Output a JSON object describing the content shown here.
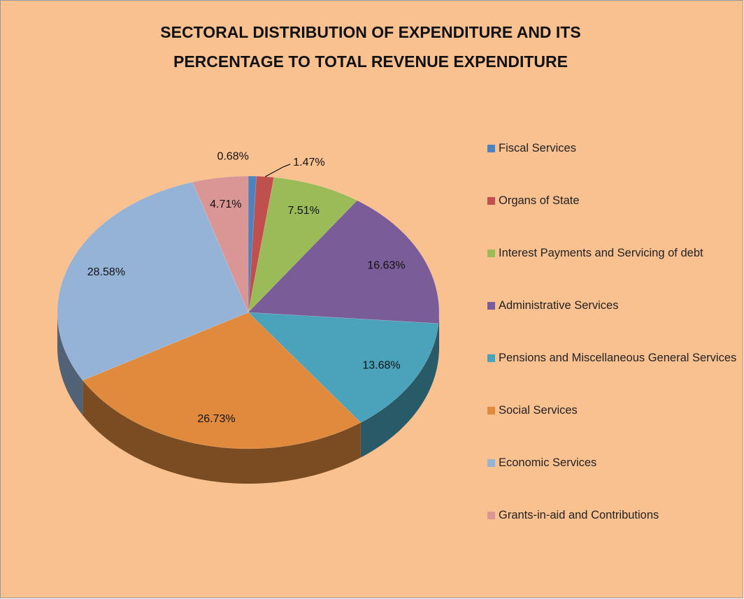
{
  "chart_data": {
    "type": "pie",
    "title": "SECTORAL DISTRIBUTION OF EXPENDITURE AND ITS PERCENTAGE TO TOTAL REVENUE EXPENDITURE",
    "categories": [
      "Fiscal Services",
      "Organs of State",
      "Interest Payments and Servicing of debt",
      "Administrative Services",
      "Pensions and Miscellaneous General Services",
      "Social Services",
      "Economic Services",
      "Grants-in-aid and Contributions"
    ],
    "values": [
      0.68,
      1.47,
      7.51,
      16.63,
      13.68,
      26.73,
      28.58,
      4.71
    ],
    "value_labels": [
      "0.68%",
      "1.47%",
      "7.51%",
      "16.63%",
      "13.68%",
      "26.73%",
      "28.58%",
      "4.71%"
    ],
    "colors": [
      "#4f81bd",
      "#c0504d",
      "#9bbb59",
      "#7a5c99",
      "#4aa3bb",
      "#e08a3e",
      "#95b3d7",
      "#d99694"
    ],
    "legend": "right"
  }
}
